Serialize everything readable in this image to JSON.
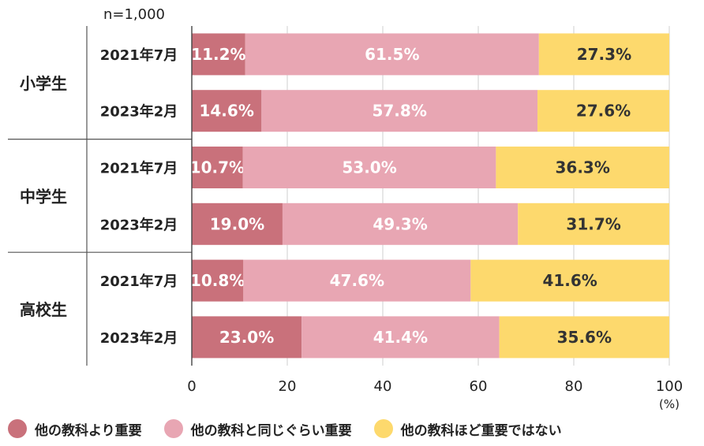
{
  "chart_data": {
    "type": "bar",
    "orientation": "horizontal",
    "stacked": true,
    "note": "n=1,000",
    "unit": "(%)",
    "xlim": [
      0,
      100
    ],
    "xticks": [
      0,
      20,
      40,
      60,
      80,
      100
    ],
    "grid": true,
    "legend_position": "bottom",
    "groups": [
      {
        "name": "小学生",
        "rows": [
          {
            "label": "2021年7月",
            "values": [
              11.2,
              61.5,
              27.3
            ]
          },
          {
            "label": "2023年2月",
            "values": [
              14.6,
              57.8,
              27.6
            ]
          }
        ]
      },
      {
        "name": "中学生",
        "rows": [
          {
            "label": "2021年7月",
            "values": [
              10.7,
              53.0,
              36.3
            ]
          },
          {
            "label": "2023年2月",
            "values": [
              19.0,
              49.3,
              31.7
            ]
          }
        ]
      },
      {
        "name": "高校生",
        "rows": [
          {
            "label": "2021年7月",
            "values": [
              10.8,
              47.6,
              41.6
            ]
          },
          {
            "label": "2023年2月",
            "values": [
              23.0,
              41.4,
              35.6
            ]
          }
        ]
      }
    ],
    "series": [
      {
        "name": "他の教科より重要",
        "color": "#c9717b"
      },
      {
        "name": "他の教科と同じぐらい重要",
        "color": "#e8a6b3"
      },
      {
        "name": "他の教科ほど重要ではない",
        "color": "#fdd96d"
      }
    ]
  }
}
